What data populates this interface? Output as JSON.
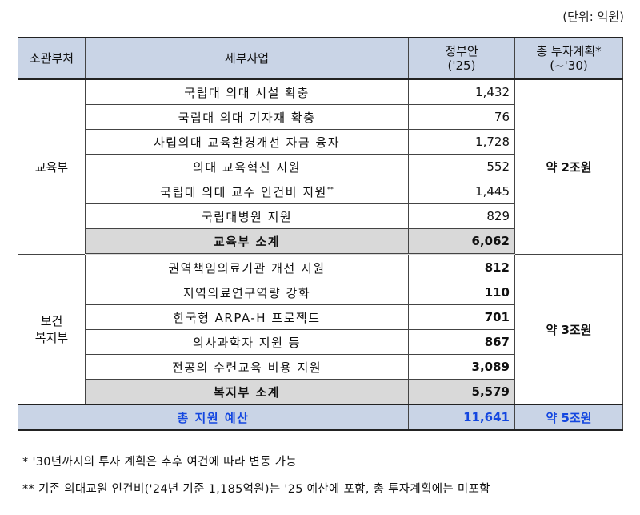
{
  "unit": "(단위: 억원)",
  "headers": {
    "dept": "소관부처",
    "project": "세부사업",
    "gov_line1": "정부안",
    "gov_line2": "('25)",
    "plan_line1": "총 투자계획*",
    "plan_line2": "(~'30)"
  },
  "education": {
    "dept": "교육부",
    "plan": "약 2조원",
    "rows": [
      {
        "project": "국립대 의대 시설 확충",
        "amount": "1,432"
      },
      {
        "project": "국립대 의대 기자재 확충",
        "amount": "76"
      },
      {
        "project": "사립의대 교육환경개선 자금 융자",
        "amount": "1,728"
      },
      {
        "project": "의대 교육혁신 지원",
        "amount": "552"
      },
      {
        "project": "국립대 의대 교수 인건비 지원",
        "marker": "**",
        "amount": "1,445"
      },
      {
        "project": "국립대병원 지원",
        "amount": "829"
      }
    ],
    "subtotal_label": "교육부 소계",
    "subtotal_amount": "6,062"
  },
  "welfare": {
    "dept_line1": "보건",
    "dept_line2": "복지부",
    "plan": "약 3조원",
    "rows": [
      {
        "project": "권역책임의료기관 개선 지원",
        "amount": "812"
      },
      {
        "project": "지역의료연구역량 강화",
        "amount": "110"
      },
      {
        "project": "한국형 ARPA-H 프로젝트",
        "amount": "701"
      },
      {
        "project": "의사과학자 지원 등",
        "amount": "867"
      },
      {
        "project": "전공의 수련교육 비용 지원",
        "amount": "3,089"
      }
    ],
    "subtotal_label": "복지부 소계",
    "subtotal_amount": "5,579"
  },
  "total": {
    "label": "총 지원 예산",
    "amount": "11,641",
    "plan": "약 5조원"
  },
  "notes": {
    "note1": "* '30년까지의 투자 계획은 추후 여건에 따라 변동 가능",
    "note2": "** 기존 의대교원 인건비('24년 기준 1,185억원)는 '25 예산에 포함, 총 투자계획에는 미포함"
  }
}
